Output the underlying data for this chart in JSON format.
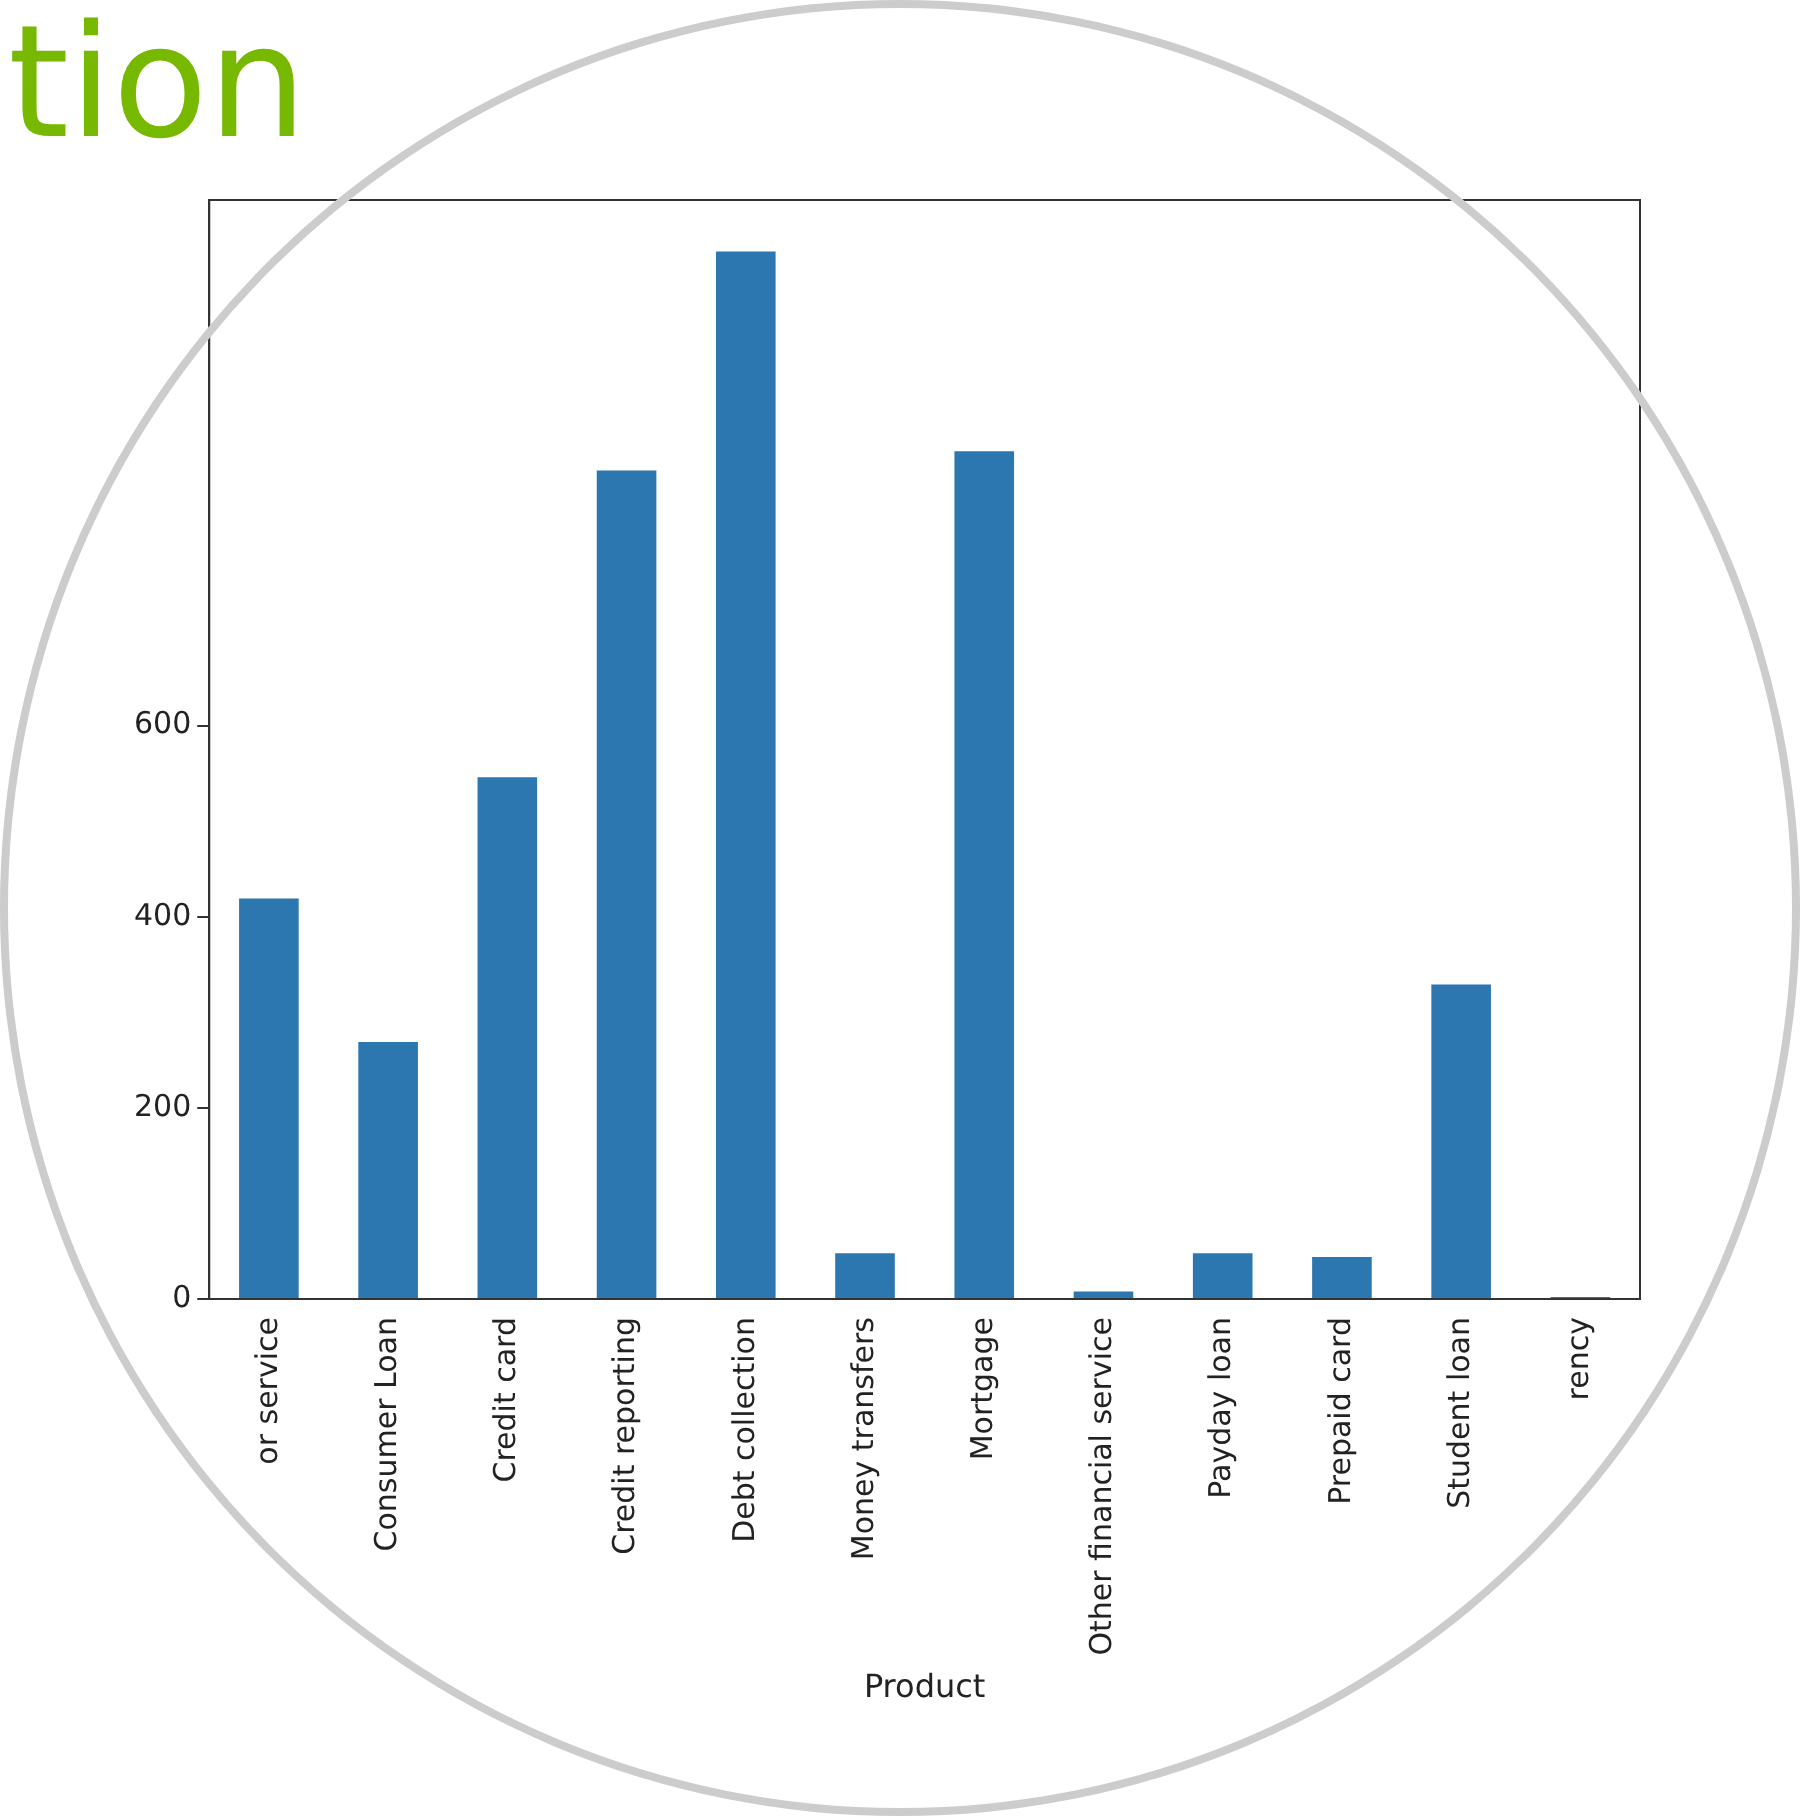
{
  "chart_data": {
    "type": "bar",
    "title": "tion",
    "xlabel": "Product",
    "categories": [
      "or service",
      "Consumer Loan",
      "Credit card",
      "Credit reporting",
      "Debt collection",
      "Money transfers",
      "Mortgage",
      "Other financial service",
      "Payday loan",
      "Prepaid card",
      "Student loan",
      "rency"
    ],
    "values": [
      419,
      269,
      546,
      867,
      1096,
      48,
      887,
      8,
      48,
      44,
      329,
      2
    ],
    "color": "#2c77b0",
    "ylim": [
      0,
      1150
    ],
    "yticks": [
      0,
      200,
      400,
      600
    ],
    "grid": false,
    "legend": false
  }
}
